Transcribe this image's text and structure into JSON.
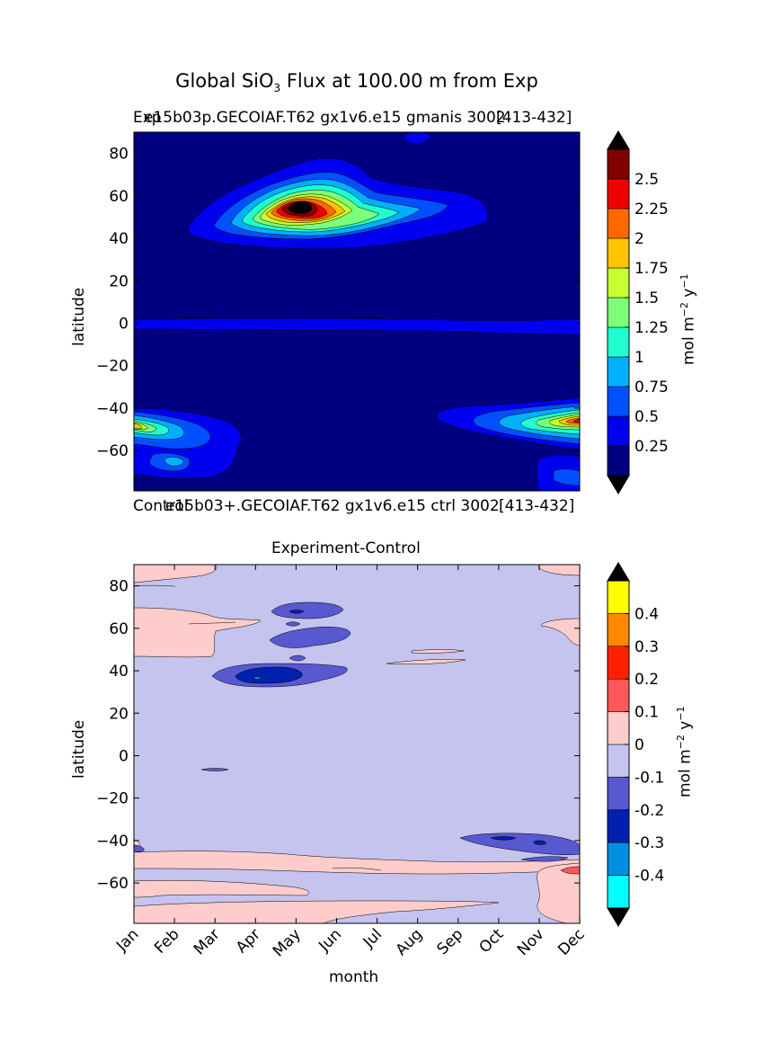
{
  "figure_title_pre": "Global SiO",
  "figure_title_sub": "3",
  "figure_title_post": " Flux at 100.00 m from Exp",
  "colors": {
    "top_levels": [
      "#000080",
      "#0000f0",
      "#0050ff",
      "#00b0ff",
      "#20ffd0",
      "#7cff79",
      "#c8ff30",
      "#ffc400",
      "#ff6800",
      "#f00000",
      "#800000"
    ],
    "diff_levels": [
      "#00ffff",
      "#0090e0",
      "#0020b0",
      "#5858d0",
      "#c4c4ee",
      "#ffcccc",
      "#ff5858",
      "#ff2000",
      "#ff8800",
      "#ffff00"
    ],
    "extend_arrow": "#000000"
  },
  "chart_data": [
    {
      "type": "heatmap",
      "title_left": "Exp",
      "title_left_overlap": "e15b03p.GECOIAF.T62 gx1v6.e15 gmanis 3002",
      "title_right": "[413-432]",
      "bottom_left": "Control",
      "bottom_center": "e15b03+.GECOIAF.T62 gx1v6.e15 ctrl 3002",
      "bottom_right": "[413-432]",
      "xlabel": "",
      "ylabel": "latitude",
      "ylim": [
        -79,
        90
      ],
      "yticks": [
        80,
        60,
        40,
        20,
        0,
        -20,
        -40,
        -60
      ],
      "colorbar_label": "mol m$^{-2}$ y$^{-1}$",
      "colorbar_label_main": "mol m",
      "colorbar_label_exp1": "−2",
      "colorbar_label_mid": " y",
      "colorbar_label_exp2": "−1",
      "colorbar_ticks": [
        "2.5",
        "2.25",
        "2",
        "1.75",
        "1.5",
        "1.25",
        "1",
        "0.75",
        "0.5",
        "0.25"
      ],
      "colorbar_extend": "both"
    },
    {
      "type": "heatmap",
      "title": "Experiment-Control",
      "xlabel": "month",
      "ylabel": "latitude",
      "ylim": [
        -79,
        90
      ],
      "yticks": [
        80,
        60,
        40,
        20,
        0,
        -20,
        -40,
        -60
      ],
      "categories": [
        "Jan",
        "Feb",
        "Mar",
        "Apr",
        "May",
        "Jun",
        "Jul",
        "Aug",
        "Sep",
        "Oct",
        "Nov",
        "Dec"
      ],
      "colorbar_label": "mol m$^{-2}$ y$^{-1}$",
      "colorbar_label_main": "mol m",
      "colorbar_label_exp1": "−2",
      "colorbar_label_mid": " y",
      "colorbar_label_exp2": "−1",
      "colorbar_ticks": [
        "0.4",
        "0.3",
        "0.2",
        "0.1",
        "0",
        "-0.1",
        "-0.2",
        "-0.3",
        "-0.4"
      ],
      "colorbar_extend": "both"
    }
  ]
}
